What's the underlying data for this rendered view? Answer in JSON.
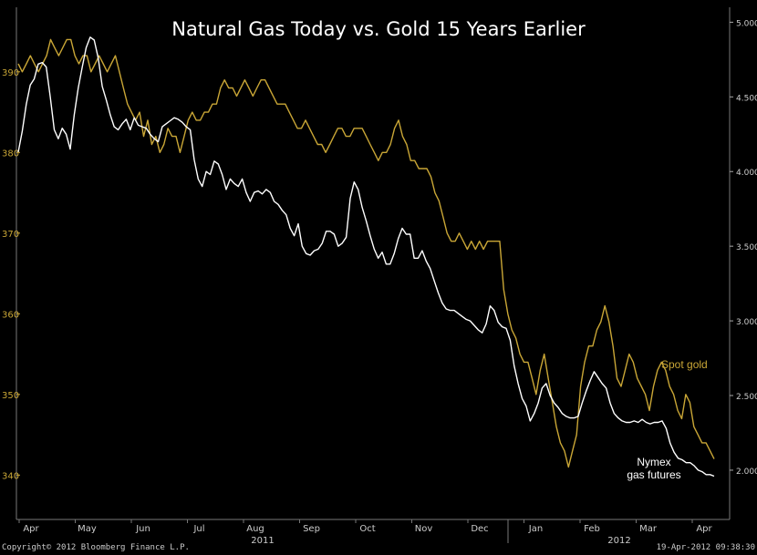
{
  "chart_data": {
    "type": "line",
    "title": "Natural Gas Today vs. Gold 15 Years Earlier",
    "x_month_labels": [
      "Apr",
      "May",
      "Jun",
      "Jul",
      "Aug",
      "Sep",
      "Oct",
      "Nov",
      "Dec",
      "Jan",
      "Feb",
      "Mar",
      "Apr"
    ],
    "x_year_labels": [
      "2011",
      "2012"
    ],
    "left_axis": {
      "ticks": [
        340,
        350,
        360,
        370,
        380,
        390
      ],
      "range": [
        334.5,
        398
      ]
    },
    "right_axis": {
      "ticks": [
        "2.000",
        "2.500",
        "3.000",
        "3.500",
        "4.000",
        "4.500",
        "5.000"
      ],
      "range": [
        1.67,
        5.1
      ]
    },
    "series": [
      {
        "name": "Spot gold",
        "axis": "left",
        "color": "#c9a636",
        "values": [
          391,
          390,
          391,
          392,
          391,
          390,
          391,
          392,
          394,
          393,
          392,
          393,
          394,
          394,
          392,
          391,
          392,
          392,
          390,
          391,
          392,
          391,
          390,
          391,
          392,
          390,
          388,
          386,
          385,
          384,
          385,
          382,
          384,
          381,
          382,
          380,
          381,
          383,
          382,
          382,
          380,
          382,
          384,
          385,
          384,
          384,
          385,
          385,
          386,
          386,
          388,
          389,
          388,
          388,
          387,
          388,
          389,
          388,
          387,
          388,
          389,
          389,
          388,
          387,
          386,
          386,
          386,
          385,
          384,
          383,
          383,
          384,
          383,
          382,
          381,
          381,
          380,
          381,
          382,
          383,
          383,
          382,
          382,
          383,
          383,
          383,
          382,
          381,
          380,
          379,
          380,
          380,
          381,
          383,
          384,
          382,
          381,
          379,
          379,
          378,
          378,
          378,
          377,
          375,
          374,
          372,
          370,
          369,
          369,
          370,
          369,
          368,
          369,
          368,
          369,
          368,
          369,
          369,
          369,
          369,
          363,
          360,
          358,
          357,
          355,
          354,
          354,
          352,
          350,
          353,
          355,
          352,
          349,
          346,
          344,
          343,
          341,
          343,
          345,
          351,
          354,
          356,
          356,
          358,
          359,
          361,
          359,
          356,
          352,
          351,
          353,
          355,
          354,
          352,
          351,
          350,
          348,
          351,
          353,
          354,
          353,
          351,
          350,
          348,
          347,
          350,
          349,
          346,
          345,
          344,
          344,
          343,
          342
        ]
      },
      {
        "name": "Nymex gas futures",
        "axis": "right",
        "color": "#ffffff",
        "values": [
          4.13,
          4.27,
          4.45,
          4.58,
          4.62,
          4.72,
          4.73,
          4.7,
          4.5,
          4.28,
          4.22,
          4.29,
          4.25,
          4.15,
          4.38,
          4.56,
          4.7,
          4.83,
          4.9,
          4.88,
          4.76,
          4.57,
          4.48,
          4.38,
          4.3,
          4.28,
          4.32,
          4.35,
          4.28,
          4.36,
          4.31,
          4.3,
          4.29,
          4.25,
          4.22,
          4.2,
          4.3,
          4.32,
          4.34,
          4.36,
          4.35,
          4.33,
          4.3,
          4.28,
          4.08,
          3.95,
          3.9,
          4,
          3.98,
          4.07,
          4.05,
          3.98,
          3.88,
          3.95,
          3.92,
          3.9,
          3.95,
          3.86,
          3.8,
          3.86,
          3.87,
          3.85,
          3.88,
          3.86,
          3.8,
          3.78,
          3.74,
          3.71,
          3.62,
          3.57,
          3.65,
          3.5,
          3.45,
          3.44,
          3.47,
          3.48,
          3.52,
          3.6,
          3.6,
          3.58,
          3.5,
          3.52,
          3.56,
          3.82,
          3.93,
          3.88,
          3.76,
          3.67,
          3.57,
          3.48,
          3.42,
          3.46,
          3.38,
          3.38,
          3.45,
          3.55,
          3.62,
          3.58,
          3.58,
          3.42,
          3.42,
          3.47,
          3.4,
          3.35,
          3.27,
          3.19,
          3.12,
          3.08,
          3.07,
          3.07,
          3.05,
          3.03,
          3.01,
          3.0,
          2.97,
          2.94,
          2.92,
          2.98,
          3.1,
          3.07,
          2.99,
          2.96,
          2.95,
          2.87,
          2.7,
          2.58,
          2.48,
          2.43,
          2.33,
          2.38,
          2.45,
          2.55,
          2.58,
          2.5,
          2.45,
          2.42,
          2.38,
          2.36,
          2.35,
          2.35,
          2.36,
          2.45,
          2.53,
          2.6,
          2.66,
          2.62,
          2.58,
          2.55,
          2.45,
          2.38,
          2.35,
          2.33,
          2.32,
          2.32,
          2.33,
          2.32,
          2.34,
          2.32,
          2.31,
          2.32,
          2.32,
          2.33,
          2.28,
          2.18,
          2.12,
          2.08,
          2.07,
          2.05,
          2.05,
          2.03,
          2.0,
          1.99,
          1.97,
          1.97,
          1.96
        ]
      }
    ],
    "grid": false
  },
  "labels": {
    "spot_gold": "Spot gold",
    "gas_line1": "Nymex",
    "gas_line2": "gas futures"
  },
  "footer": {
    "copyright": "Copyright© 2012 Bloomberg Finance L.P.",
    "timestamp": "19-Apr-2012 09:38:30"
  }
}
